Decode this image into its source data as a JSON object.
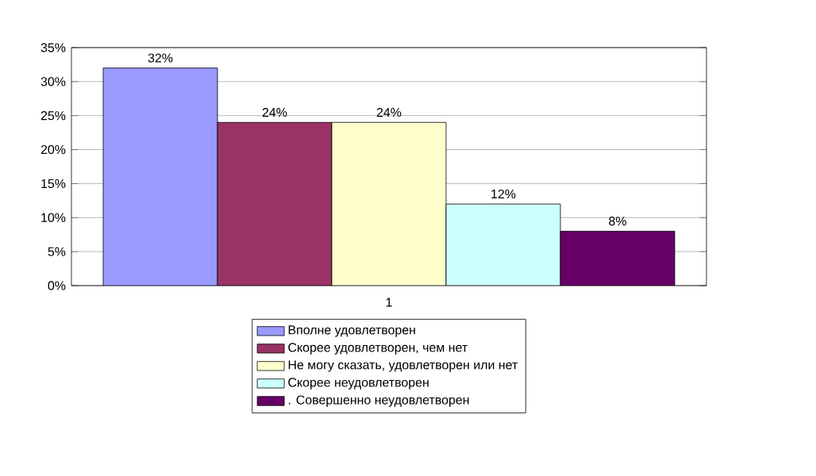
{
  "chart_data": {
    "type": "bar",
    "categories": [
      "1"
    ],
    "series": [
      {
        "name": "Вполне удовлетворен",
        "color": "#9999ff",
        "values": [
          32
        ],
        "value_labels": [
          "32%"
        ]
      },
      {
        "name": "Скорее удовлетворен, чем нет",
        "color": "#993366",
        "values": [
          24
        ],
        "value_labels": [
          "24%"
        ]
      },
      {
        "name": "Не могу сказать, удовлетворен или нет",
        "color": "#ffffcc",
        "values": [
          24
        ],
        "value_labels": [
          "24%"
        ]
      },
      {
        "name": "Скорее неудовлетворен",
        "color": "#ccffff",
        "values": [
          12
        ],
        "value_labels": [
          "12%"
        ]
      },
      {
        "name": ". Совершенно неудовлетворен",
        "color": "#660066",
        "values": [
          8
        ],
        "value_labels": [
          "8%"
        ]
      }
    ],
    "ylim": [
      0,
      35
    ],
    "yticks": [
      {
        "value": 0,
        "label": "0%"
      },
      {
        "value": 5,
        "label": "5%"
      },
      {
        "value": 10,
        "label": "10%"
      },
      {
        "value": 15,
        "label": "15%"
      },
      {
        "value": 20,
        "label": "20%"
      },
      {
        "value": 25,
        "label": "25%"
      },
      {
        "value": 30,
        "label": "30%"
      },
      {
        "value": 35,
        "label": "35%"
      }
    ],
    "grid": "y",
    "legend": "bottom"
  }
}
